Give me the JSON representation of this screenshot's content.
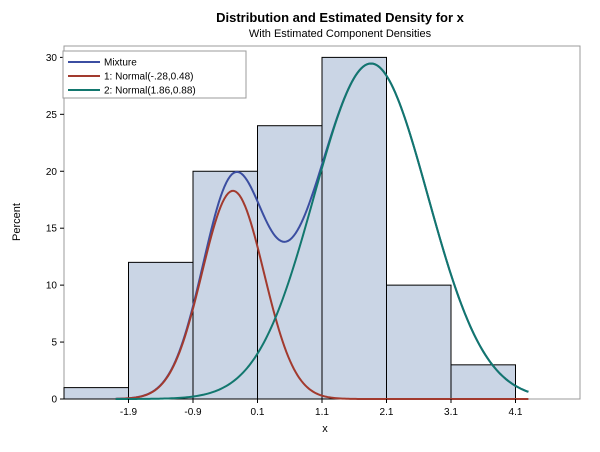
{
  "chart_data": {
    "type": "bar",
    "title": "Distribution and Estimated Density for x",
    "subtitle": "With Estimated Component Densities",
    "xlabel": "x",
    "ylabel": "Percent",
    "xlim": [
      -2.9,
      5.1
    ],
    "ylim": [
      0,
      31
    ],
    "xticks": [
      -1.9,
      -0.9,
      0.1,
      1.1,
      2.1,
      3.1,
      4.1
    ],
    "yticks": [
      0,
      5,
      10,
      15,
      20,
      25,
      30
    ],
    "histogram": {
      "bin_width": 1.0,
      "bin_midpoints": [
        -2.4,
        -1.4,
        -0.4,
        0.6,
        1.6,
        2.6,
        3.6,
        4.6
      ],
      "values": [
        1,
        12,
        20,
        24,
        30,
        10,
        3,
        0
      ],
      "fill_color": "#cad5e5",
      "edge_color": "#000000"
    },
    "series": [
      {
        "name": "Mixture",
        "color": "#3b4ea1"
      },
      {
        "name": "1: Normal(-.28,0.48)",
        "color": "#a23a2e",
        "weight": 0.22,
        "mu": -0.28,
        "sigma": 0.48
      },
      {
        "name": "2: Normal(1.86,0.88)",
        "color": "#12776e",
        "weight": 0.65,
        "mu": 1.86,
        "sigma": 0.88
      }
    ],
    "curve_x_range": [
      -2.1,
      4.3
    ],
    "legend_placement": "top-left",
    "grid": false,
    "frame_color": "#9b9b9b"
  }
}
